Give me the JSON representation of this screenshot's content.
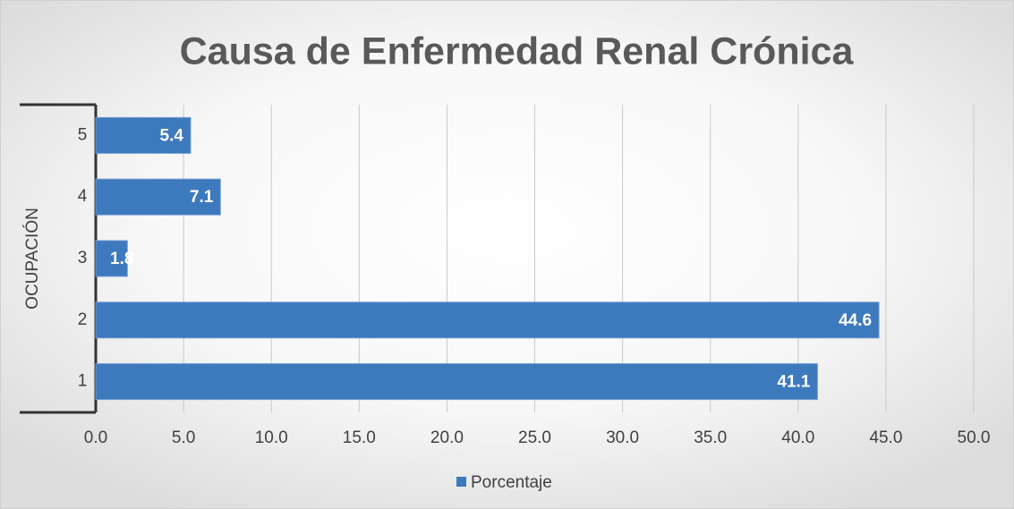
{
  "chart_data": {
    "type": "barh",
    "title": "Causa de Enfermedad Renal Crónica",
    "ylabel": "OCUPACIÓN",
    "categories": [
      "1",
      "2",
      "3",
      "4",
      "5"
    ],
    "series": [
      {
        "name": "Porcentaje",
        "color": "#3d79bd",
        "values": [
          41.1,
          44.6,
          1.8,
          7.1,
          5.4
        ]
      }
    ],
    "xlim": [
      0,
      50
    ],
    "xticks": [
      {
        "value": 0,
        "label": "0.0"
      },
      {
        "value": 5,
        "label": "5.0"
      },
      {
        "value": 10,
        "label": "10.0"
      },
      {
        "value": 15,
        "label": "15.0"
      },
      {
        "value": 20,
        "label": "20.0"
      },
      {
        "value": 25,
        "label": "25.0"
      },
      {
        "value": 30,
        "label": "30.0"
      },
      {
        "value": 35,
        "label": "35.0"
      },
      {
        "value": 40,
        "label": "40.0"
      },
      {
        "value": 45,
        "label": "45.0"
      },
      {
        "value": 50,
        "label": "50.0"
      }
    ],
    "grid": true,
    "legend": "bottom"
  }
}
